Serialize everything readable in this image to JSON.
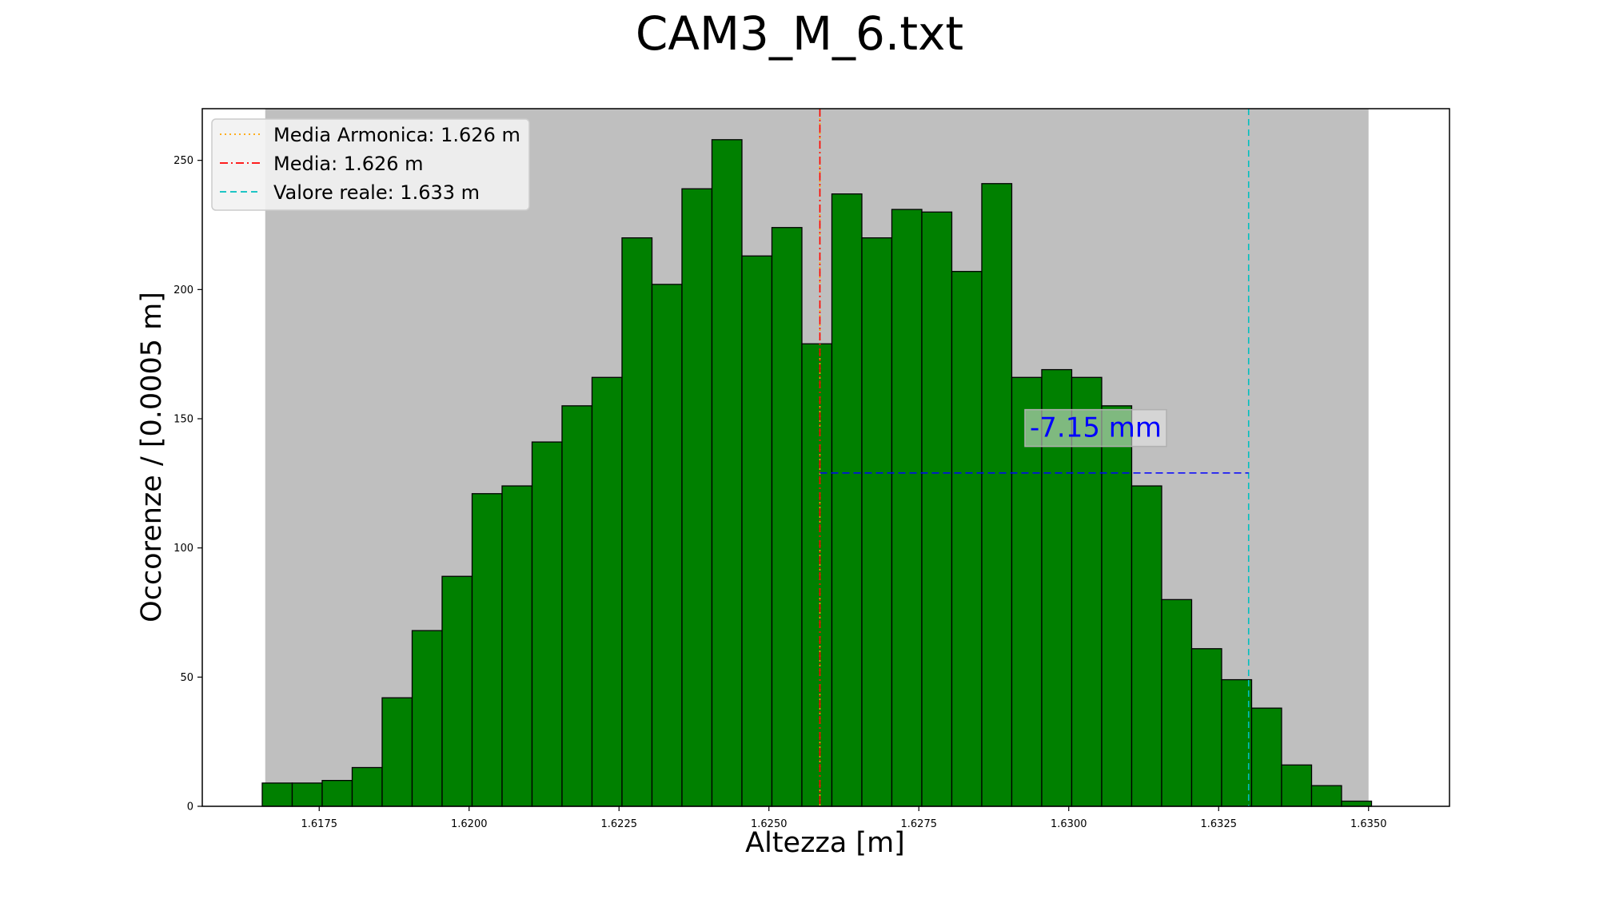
{
  "chart_data": {
    "type": "bar",
    "title": "CAM3_M_6.txt",
    "xlabel": "Altezza [m]",
    "ylabel": "Occorenze / [0.0005 m]",
    "xlim": [
      1.61555,
      1.63635
    ],
    "ylim": [
      0,
      270
    ],
    "xticks": [
      1.6175,
      1.62,
      1.6225,
      1.625,
      1.6275,
      1.63,
      1.6325,
      1.635
    ],
    "xtick_labels": [
      "1.6175",
      "1.6200",
      "1.6225",
      "1.6250",
      "1.6275",
      "1.6300",
      "1.6325",
      "1.6350"
    ],
    "yticks": [
      0,
      50,
      100,
      150,
      200,
      250
    ],
    "ytick_labels": [
      "0",
      "50",
      "100",
      "150",
      "200",
      "250"
    ],
    "grid": false,
    "bins": {
      "start": 1.61655,
      "width": 0.0005,
      "counts": [
        9,
        9,
        10,
        15,
        42,
        68,
        89,
        121,
        124,
        141,
        155,
        166,
        220,
        202,
        239,
        258,
        213,
        224,
        179,
        237,
        220,
        231,
        230,
        207,
        241,
        166,
        169,
        166,
        155,
        124,
        80,
        61,
        49,
        38,
        16,
        8,
        2
      ],
      "color": "#008000",
      "edge_color": "#000000"
    },
    "shaded_range": {
      "x": [
        1.6166,
        1.635
      ],
      "color": "#bfbfbf"
    },
    "vlines": [
      {
        "name": "Media Armonica",
        "label": "Media Armonica: 1.626 m",
        "x": 1.62585,
        "color": "#ffa500",
        "style": "dotted"
      },
      {
        "name": "Media",
        "label": "Media: 1.626 m",
        "x": 1.62585,
        "color": "#ff0000",
        "style": "dashdot"
      },
      {
        "name": "Valore reale",
        "label": "Valore reale: 1.633 m",
        "x": 1.633,
        "color": "#00bfbf",
        "style": "dashed"
      }
    ],
    "difference_line": {
      "x": [
        1.62585,
        1.633
      ],
      "y": 129,
      "color": "#0000ff"
    },
    "annotation": {
      "text": "-7.15 mm",
      "x": 1.62935,
      "y": 143,
      "color": "#0000ff"
    },
    "legend_position": "top-left"
  }
}
